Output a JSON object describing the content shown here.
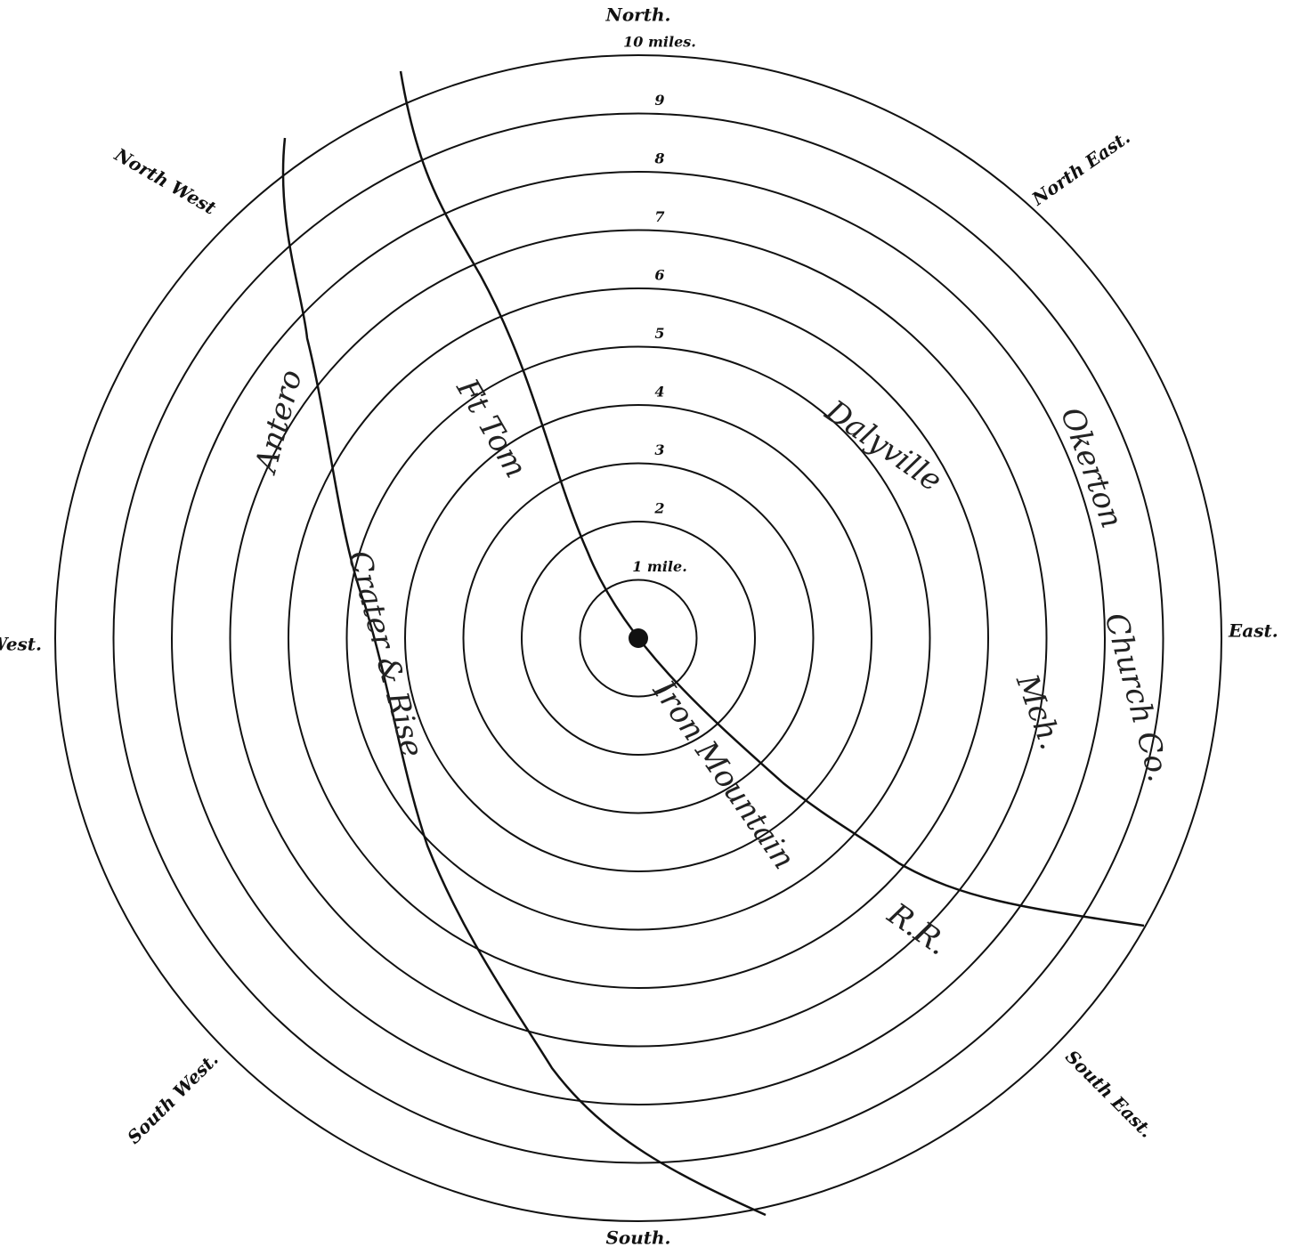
{
  "map": {
    "directions": {
      "north": "North.",
      "north_east": "North East.",
      "east": "East.",
      "south_east": "South East.",
      "south": "South.",
      "south_west": "South West.",
      "west": "West.",
      "north_west": "North West"
    },
    "rings": [
      "1 mile.",
      "2",
      "3",
      "4",
      "5",
      "6",
      "7",
      "8",
      "9",
      "10 miles."
    ],
    "annotations": {
      "ft_tom": "Ft Tom",
      "iron_mountain": "Iron Mountain",
      "rr": "R.R.",
      "dalyville": "Dalyville",
      "okerton": "Okerton",
      "antero": "Antero",
      "crater": "Crater & Rise",
      "church": "Church Co.",
      "mch": "Mch."
    }
  }
}
